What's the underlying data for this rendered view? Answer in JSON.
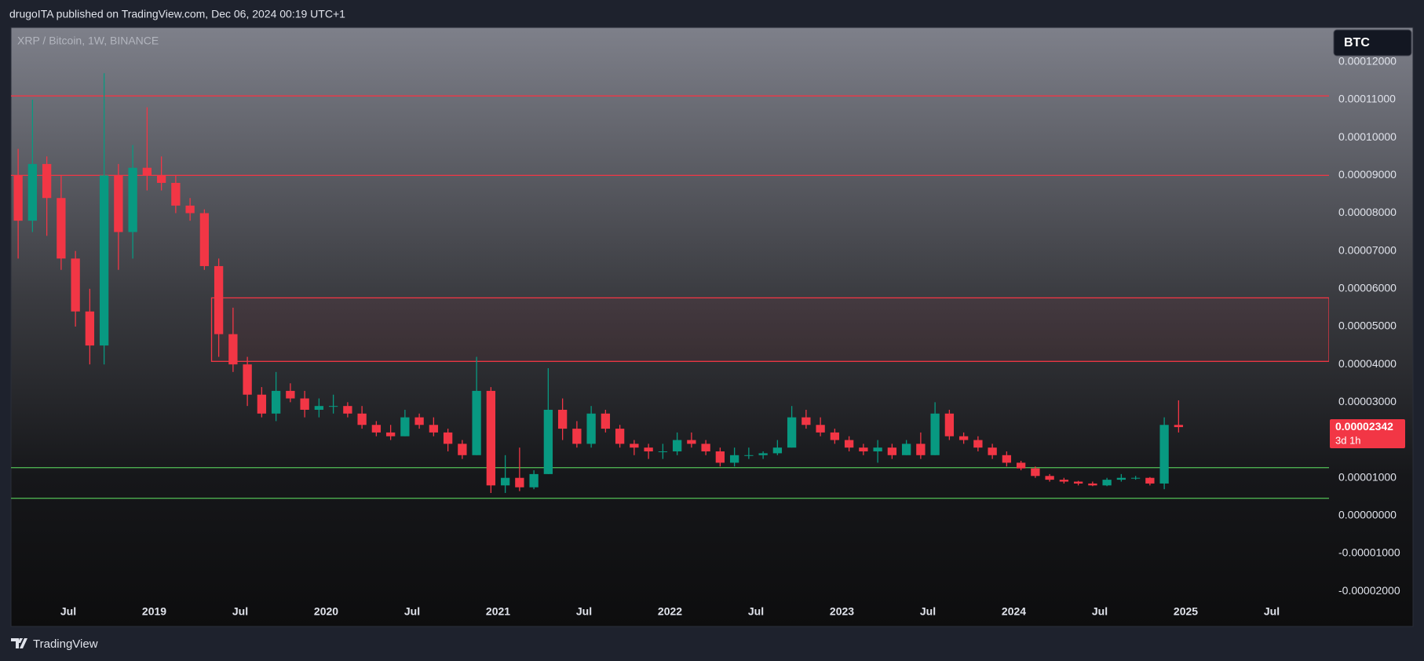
{
  "header": {
    "text": "drugoITA published on TradingView.com, Dec 06, 2024 00:19 UTC+1"
  },
  "footer": {
    "brand": "TradingView"
  },
  "chart_data": {
    "type": "candlestick",
    "title": "XRP / Bitcoin, 1W, BINANCE",
    "currency": "BTC",
    "up_color": "#089981",
    "down_color": "#f23645",
    "xlim": [
      "2018-03",
      "2025-11"
    ],
    "ylim": [
      -2.93e-05,
      0.0001291
    ],
    "yticks": [
      {
        "value": 0.00012,
        "label": "0.00012000"
      },
      {
        "value": 0.00011,
        "label": "0.00011000"
      },
      {
        "value": 0.0001,
        "label": "0.00010000"
      },
      {
        "value": 9e-05,
        "label": "0.00009000"
      },
      {
        "value": 8e-05,
        "label": "0.00008000"
      },
      {
        "value": 7e-05,
        "label": "0.00007000"
      },
      {
        "value": 6e-05,
        "label": "0.00006000"
      },
      {
        "value": 5e-05,
        "label": "0.00005000"
      },
      {
        "value": 4e-05,
        "label": "0.00004000"
      },
      {
        "value": 3e-05,
        "label": "0.00003000"
      },
      {
        "value": 2e-05,
        "label": "0.00002000"
      },
      {
        "value": 1e-05,
        "label": "0.00001000"
      },
      {
        "value": 0,
        "label": "0.00000000"
      },
      {
        "value": -1e-05,
        "label": "-0.00001000"
      },
      {
        "value": -2e-05,
        "label": "-0.00002000"
      }
    ],
    "xticks": [
      {
        "value": "2018-07",
        "label": "Jul"
      },
      {
        "value": "2019-01",
        "label": "2019"
      },
      {
        "value": "2019-07",
        "label": "Jul"
      },
      {
        "value": "2020-01",
        "label": "2020"
      },
      {
        "value": "2020-07",
        "label": "Jul"
      },
      {
        "value": "2021-01",
        "label": "2021"
      },
      {
        "value": "2021-07",
        "label": "Jul"
      },
      {
        "value": "2022-01",
        "label": "2022"
      },
      {
        "value": "2022-07",
        "label": "Jul"
      },
      {
        "value": "2023-01",
        "label": "2023"
      },
      {
        "value": "2023-07",
        "label": "Jul"
      },
      {
        "value": "2024-01",
        "label": "2024"
      },
      {
        "value": "2024-07",
        "label": "Jul"
      },
      {
        "value": "2025-01",
        "label": "2025"
      },
      {
        "value": "2025-07",
        "label": "Jul"
      }
    ],
    "levels": [
      {
        "value": 0.000111,
        "color": "#f23645"
      },
      {
        "value": 9e-05,
        "color": "#f23645"
      },
      {
        "value": 1.27e-05,
        "color": "#4caf50"
      },
      {
        "value": 4.6e-06,
        "color": "#4caf50"
      }
    ],
    "zones": [
      {
        "start": "2019-05",
        "low": 4.08e-05,
        "high": 5.76e-05,
        "color": "#f23645"
      }
    ],
    "last_price": {
      "value": 2.342e-05,
      "label": "0.00002342",
      "countdown": "3d 1h"
    },
    "candles": {
      "x": [
        "2018-03",
        "2018-04",
        "2018-05",
        "2018-06",
        "2018-07",
        "2018-08",
        "2018-09",
        "2018-10",
        "2018-11",
        "2018-12",
        "2019-01",
        "2019-02",
        "2019-03",
        "2019-04",
        "2019-05",
        "2019-06",
        "2019-07",
        "2019-08",
        "2019-09",
        "2019-10",
        "2019-11",
        "2019-12",
        "2020-01",
        "2020-02",
        "2020-03",
        "2020-04",
        "2020-05",
        "2020-06",
        "2020-07",
        "2020-08",
        "2020-09",
        "2020-10",
        "2020-11",
        "2020-12",
        "2021-01",
        "2021-02",
        "2021-03",
        "2021-04",
        "2021-05",
        "2021-06",
        "2021-07",
        "2021-08",
        "2021-09",
        "2021-10",
        "2021-11",
        "2021-12",
        "2022-01",
        "2022-02",
        "2022-03",
        "2022-04",
        "2022-05",
        "2022-06",
        "2022-07",
        "2022-08",
        "2022-09",
        "2022-10",
        "2022-11",
        "2022-12",
        "2023-01",
        "2023-02",
        "2023-03",
        "2023-04",
        "2023-05",
        "2023-06",
        "2023-07",
        "2023-08",
        "2023-09",
        "2023-10",
        "2023-11",
        "2023-12",
        "2024-01",
        "2024-02",
        "2024-03",
        "2024-04",
        "2024-05",
        "2024-06",
        "2024-07",
        "2024-08",
        "2024-09",
        "2024-10",
        "2024-11",
        "2024-12"
      ],
      "open": [
        9e-05,
        7.8e-05,
        9.3e-05,
        8.4e-05,
        6.8e-05,
        5.4e-05,
        4.5e-05,
        9e-05,
        7.5e-05,
        9.2e-05,
        9e-05,
        8.8e-05,
        8.2e-05,
        8e-05,
        6.6e-05,
        4.8e-05,
        4e-05,
        3.2e-05,
        2.7e-05,
        3.3e-05,
        3.1e-05,
        2.8e-05,
        2.9e-05,
        2.9e-05,
        2.7e-05,
        2.4e-05,
        2.2e-05,
        2.1e-05,
        2.6e-05,
        2.4e-05,
        2.2e-05,
        1.9e-05,
        1.6e-05,
        3.3e-05,
        8e-06,
        1e-05,
        7.5e-06,
        1.1e-05,
        2.8e-05,
        2.3e-05,
        1.9e-05,
        2.7e-05,
        2.3e-05,
        1.9e-05,
        1.8e-05,
        1.7e-05,
        1.7e-05,
        2e-05,
        1.9e-05,
        1.7e-05,
        1.4e-05,
        1.6e-05,
        1.6e-05,
        1.65e-05,
        1.8e-05,
        2.6e-05,
        2.4e-05,
        2.2e-05,
        2e-05,
        1.8e-05,
        1.7e-05,
        1.8e-05,
        1.6e-05,
        1.9e-05,
        1.6e-05,
        2.7e-05,
        2.1e-05,
        2e-05,
        1.8e-05,
        1.6e-05,
        1.4e-05,
        1.25e-05,
        1.05e-05,
        9.5e-06,
        9e-06,
        8.5e-06,
        8e-06,
        9.5e-06,
        1e-05,
        1e-05,
        8.5e-06,
        2.4e-05
      ],
      "high": [
        9.7e-05,
        0.00011,
        9.5e-05,
        9e-05,
        7e-05,
        6e-05,
        0.000117,
        9.3e-05,
        9.8e-05,
        0.000108,
        9.5e-05,
        9e-05,
        8.4e-05,
        8.1e-05,
        6.8e-05,
        5.5e-05,
        4.2e-05,
        3.4e-05,
        3.8e-05,
        3.5e-05,
        3.3e-05,
        3.1e-05,
        3.2e-05,
        3e-05,
        2.9e-05,
        2.5e-05,
        2.4e-05,
        2.8e-05,
        2.7e-05,
        2.6e-05,
        2.3e-05,
        2e-05,
        4.2e-05,
        3.4e-05,
        1.6e-05,
        1.8e-05,
        1.2e-05,
        3.9e-05,
        3.1e-05,
        2.5e-05,
        2.9e-05,
        2.8e-05,
        2.4e-05,
        2e-05,
        1.9e-05,
        1.9e-05,
        2.2e-05,
        2.2e-05,
        2e-05,
        1.8e-05,
        1.8e-05,
        1.8e-05,
        1.7e-05,
        2e-05,
        2.9e-05,
        2.8e-05,
        2.6e-05,
        2.3e-05,
        2.1e-05,
        1.9e-05,
        2e-05,
        1.9e-05,
        2e-05,
        2.2e-05,
        3e-05,
        2.8e-05,
        2.2e-05,
        2.1e-05,
        1.9e-05,
        1.7e-05,
        1.45e-05,
        1.3e-05,
        1.1e-05,
        1e-05,
        9.2e-06,
        9e-06,
        1e-05,
        1.1e-05,
        1.05e-05,
        1.02e-05,
        2.6e-05,
        3.05e-05
      ],
      "low": [
        6.8e-05,
        7.5e-05,
        7.4e-05,
        6.5e-05,
        5e-05,
        4e-05,
        4e-05,
        6.5e-05,
        6.8e-05,
        8.6e-05,
        8.6e-05,
        8e-05,
        7.8e-05,
        6.5e-05,
        4.2e-05,
        3.8e-05,
        2.9e-05,
        2.6e-05,
        2.5e-05,
        3e-05,
        2.6e-05,
        2.6e-05,
        2.7e-05,
        2.6e-05,
        2.3e-05,
        2.1e-05,
        2e-05,
        2.1e-05,
        2.3e-05,
        2.1e-05,
        1.7e-05,
        1.5e-05,
        1.6e-05,
        6e-06,
        6e-06,
        6.5e-06,
        7e-06,
        1.1e-05,
        2e-05,
        1.8e-05,
        1.8e-05,
        2.2e-05,
        1.8e-05,
        1.6e-05,
        1.5e-05,
        1.5e-05,
        1.6e-05,
        1.8e-05,
        1.6e-05,
        1.3e-05,
        1.3e-05,
        1.5e-05,
        1.5e-05,
        1.6e-05,
        1.8e-05,
        2.3e-05,
        2.1e-05,
        1.9e-05,
        1.7e-05,
        1.6e-05,
        1.4e-05,
        1.5e-05,
        1.6e-05,
        1.5e-05,
        1.6e-05,
        2e-05,
        1.9e-05,
        1.7e-05,
        1.5e-05,
        1.3e-05,
        1.2e-05,
        1e-05,
        9e-06,
        8.5e-06,
        8e-06,
        7.8e-06,
        7.8e-06,
        9e-06,
        9.5e-06,
        8e-06,
        7e-06,
        2.2e-05
      ],
      "close": [
        7.8e-05,
        9.3e-05,
        8.4e-05,
        6.8e-05,
        5.4e-05,
        4.5e-05,
        9e-05,
        7.5e-05,
        9.2e-05,
        9e-05,
        8.8e-05,
        8.2e-05,
        8e-05,
        6.6e-05,
        4.8e-05,
        4e-05,
        3.2e-05,
        2.7e-05,
        3.3e-05,
        3.1e-05,
        2.8e-05,
        2.9e-05,
        2.9e-05,
        2.7e-05,
        2.4e-05,
        2.2e-05,
        2.1e-05,
        2.6e-05,
        2.4e-05,
        2.2e-05,
        1.9e-05,
        1.6e-05,
        3.3e-05,
        8e-06,
        1e-05,
        7.5e-06,
        1.1e-05,
        2.8e-05,
        2.3e-05,
        1.9e-05,
        2.7e-05,
        2.3e-05,
        1.9e-05,
        1.8e-05,
        1.7e-05,
        1.7e-05,
        2e-05,
        1.9e-05,
        1.7e-05,
        1.4e-05,
        1.6e-05,
        1.6e-05,
        1.65e-05,
        1.8e-05,
        2.6e-05,
        2.4e-05,
        2.2e-05,
        2e-05,
        1.8e-05,
        1.7e-05,
        1.8e-05,
        1.6e-05,
        1.9e-05,
        1.6e-05,
        2.7e-05,
        2.1e-05,
        2e-05,
        1.8e-05,
        1.6e-05,
        1.4e-05,
        1.25e-05,
        1.05e-05,
        9.5e-06,
        9e-06,
        8.5e-06,
        8e-06,
        9.5e-06,
        1e-05,
        1e-05,
        8.5e-06,
        2.4e-05,
        2.342e-05
      ]
    }
  }
}
